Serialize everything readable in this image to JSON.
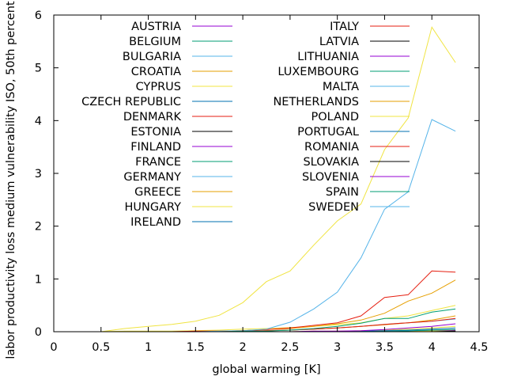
{
  "chart_data": {
    "type": "line",
    "title": "",
    "xlabel": "global warming [K]",
    "ylabel": "labor productivity loss medium vulnerability ISO, 50th percentile",
    "xlim": [
      0,
      4.5
    ],
    "ylim": [
      0,
      6
    ],
    "xticks": [
      "0",
      "0.5",
      "1",
      "1.5",
      "2",
      "2.5",
      "3",
      "3.5",
      "4",
      "4.5"
    ],
    "yticks": [
      "0",
      "1",
      "2",
      "3",
      "4",
      "5",
      "6"
    ],
    "x": [
      0.5,
      0.75,
      1.0,
      1.25,
      1.5,
      1.75,
      2.0,
      2.25,
      2.5,
      2.75,
      3.0,
      3.25,
      3.5,
      3.75,
      4.0,
      4.25
    ],
    "grid": false,
    "legend_position": "top, two columns",
    "series": [
      {
        "name": "AUSTRIA",
        "color": "#9400d3",
        "values": [
          0,
          0,
          0,
          0,
          0,
          0,
          0,
          0,
          0,
          0,
          0,
          0,
          0.01,
          0.01,
          0.02,
          0.03
        ]
      },
      {
        "name": "BELGIUM",
        "color": "#009e73",
        "values": [
          0,
          0,
          0,
          0,
          0,
          0,
          0,
          0,
          0,
          0,
          0,
          0,
          0,
          0.01,
          0.01,
          0.01
        ]
      },
      {
        "name": "BULGARIA",
        "color": "#56b4e9",
        "values": [
          0,
          0,
          0,
          0,
          0,
          0,
          0.01,
          0.02,
          0.03,
          0.05,
          0.07,
          0.1,
          0.14,
          0.17,
          0.2,
          0.24
        ]
      },
      {
        "name": "CROATIA",
        "color": "#e69f00",
        "values": [
          0,
          0,
          0,
          0,
          0,
          0,
          0.01,
          0.02,
          0.03,
          0.05,
          0.07,
          0.1,
          0.13,
          0.17,
          0.22,
          0.3
        ]
      },
      {
        "name": "CYPRUS",
        "color": "#f0e442",
        "values": [
          0,
          0.01,
          0.01,
          0.01,
          0.02,
          0.03,
          0.05,
          0.06,
          0.08,
          0.1,
          0.13,
          0.17,
          0.25,
          0.3,
          0.4,
          0.5
        ]
      },
      {
        "name": "CZECH REPUBLIC",
        "color": "#0072b2",
        "values": [
          0,
          0,
          0,
          0,
          0,
          0,
          0,
          0,
          0,
          0,
          0,
          0,
          0,
          0,
          0,
          0.01
        ]
      },
      {
        "name": "DENMARK",
        "color": "#e51e10",
        "values": [
          0,
          0,
          0,
          0,
          0,
          0,
          0,
          0,
          0,
          0,
          0,
          0,
          0,
          0,
          0,
          0
        ]
      },
      {
        "name": "ESTONIA",
        "color": "#000000",
        "values": [
          0,
          0,
          0,
          0,
          0,
          0,
          0,
          0,
          0,
          0,
          0,
          0,
          0,
          0,
          0,
          0
        ]
      },
      {
        "name": "FINLAND",
        "color": "#9400d3",
        "values": [
          0,
          0,
          0,
          0,
          0,
          0,
          0,
          0,
          0,
          0,
          0,
          0,
          0,
          0,
          0,
          0
        ]
      },
      {
        "name": "FRANCE",
        "color": "#009e73",
        "values": [
          0,
          0,
          0,
          0,
          0,
          0,
          0,
          0,
          0,
          0,
          0,
          0,
          0.01,
          0.02,
          0.03,
          0.04
        ]
      },
      {
        "name": "GERMANY",
        "color": "#56b4e9",
        "values": [
          0,
          0,
          0,
          0,
          0,
          0,
          0,
          0,
          0,
          0,
          0,
          0,
          0,
          0.01,
          0.01,
          0.01
        ]
      },
      {
        "name": "GREECE",
        "color": "#e69f00",
        "values": [
          0,
          0,
          0,
          0,
          0.01,
          0.01,
          0.02,
          0.04,
          0.06,
          0.1,
          0.15,
          0.22,
          0.35,
          0.58,
          0.73,
          0.98
        ]
      },
      {
        "name": "HUNGARY",
        "color": "#f0e442",
        "values": [
          0,
          0,
          0,
          0,
          0,
          0,
          0,
          0,
          0,
          0.01,
          0.01,
          0.02,
          0.03,
          0.05,
          0.07,
          0.1
        ]
      },
      {
        "name": "IRELAND",
        "color": "#0072b2",
        "values": [
          0,
          0,
          0,
          0,
          0,
          0,
          0,
          0,
          0,
          0,
          0,
          0,
          0,
          0,
          0,
          0
        ]
      },
      {
        "name": "ITALY",
        "color": "#e51e10",
        "values": [
          0,
          0,
          0,
          0,
          0.01,
          0.01,
          0.02,
          0.04,
          0.07,
          0.12,
          0.17,
          0.3,
          0.65,
          0.7,
          1.15,
          1.13
        ]
      },
      {
        "name": "LATVIA",
        "color": "#000000",
        "values": [
          0,
          0,
          0,
          0,
          0,
          0,
          0,
          0,
          0,
          0,
          0,
          0,
          0,
          0,
          0,
          0
        ]
      },
      {
        "name": "LITHUANIA",
        "color": "#9400d3",
        "values": [
          0,
          0,
          0,
          0,
          0,
          0,
          0,
          0,
          0,
          0,
          0,
          0,
          0,
          0,
          0,
          0
        ]
      },
      {
        "name": "LUXEMBOURG",
        "color": "#009e73",
        "values": [
          0,
          0,
          0,
          0,
          0,
          0,
          0,
          0,
          0,
          0,
          0,
          0,
          0,
          0.01,
          0.01,
          0.01
        ]
      },
      {
        "name": "MALTA",
        "color": "#56b4e9",
        "values": [
          0,
          0,
          0,
          0,
          0,
          0.01,
          0.02,
          0.05,
          0.18,
          0.43,
          0.75,
          1.4,
          2.32,
          2.65,
          4.02,
          3.8
        ]
      },
      {
        "name": "NETHERLANDS",
        "color": "#e69f00",
        "values": [
          0,
          0,
          0,
          0,
          0,
          0,
          0,
          0,
          0,
          0,
          0,
          0,
          0,
          0,
          0.01,
          0.01
        ]
      },
      {
        "name": "POLAND",
        "color": "#f0e442",
        "values": [
          0,
          0,
          0,
          0,
          0,
          0,
          0,
          0,
          0,
          0,
          0,
          0,
          0,
          0,
          0.01,
          0.01
        ]
      },
      {
        "name": "PORTUGAL",
        "color": "#0072b2",
        "values": [
          0,
          0,
          0,
          0,
          0,
          0,
          0,
          0,
          0,
          0,
          0,
          0.01,
          0.02,
          0.03,
          0.05,
          0.07
        ]
      },
      {
        "name": "ROMANIA",
        "color": "#e51e10",
        "values": [
          0,
          0,
          0,
          0,
          0,
          0,
          0.01,
          0.02,
          0.03,
          0.05,
          0.07,
          0.1,
          0.14,
          0.17,
          0.2,
          0.25
        ]
      },
      {
        "name": "SLOVAKIA",
        "color": "#000000",
        "values": [
          0,
          0,
          0,
          0,
          0,
          0,
          0,
          0,
          0,
          0,
          0,
          0,
          0,
          0,
          0,
          0.01
        ]
      },
      {
        "name": "SLOVENIA",
        "color": "#9400d3",
        "values": [
          0,
          0,
          0,
          0,
          0,
          0,
          0,
          0,
          0,
          0.01,
          0.01,
          0.02,
          0.04,
          0.07,
          0.1,
          0.15
        ]
      },
      {
        "name": "SPAIN",
        "color": "#009e73",
        "values": [
          0,
          0,
          0,
          0,
          0,
          0,
          0.01,
          0.01,
          0.03,
          0.06,
          0.1,
          0.16,
          0.25,
          0.25,
          0.37,
          0.43
        ]
      },
      {
        "name": "SWEDEN",
        "color": "#56b4e9",
        "values": [
          0,
          0,
          0,
          0,
          0,
          0,
          0,
          0,
          0,
          0,
          0,
          0,
          0,
          0,
          0,
          0
        ]
      },
      {
        "name": "",
        "color": "#f0e442",
        "values": [
          0,
          0.06,
          0.1,
          0.14,
          0.2,
          0.31,
          0.55,
          0.95,
          1.15,
          1.64,
          2.1,
          2.42,
          3.45,
          4.05,
          5.77,
          5.1
        ]
      }
    ]
  }
}
